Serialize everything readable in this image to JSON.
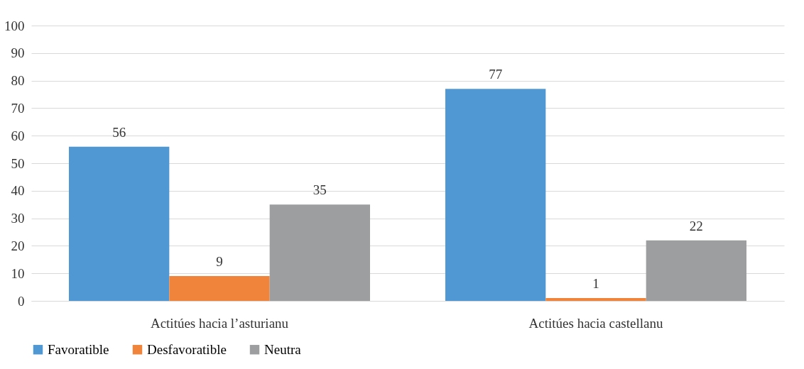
{
  "chart_data": {
    "type": "bar",
    "categories": [
      "Actitúes hacia l’asturianu",
      "Actitúes hacia castellanu"
    ],
    "series": [
      {
        "name": "Favoratible",
        "color": "#4f98d4",
        "values": [
          56,
          77
        ]
      },
      {
        "name": "Desfavoratible",
        "color": "#f0843a",
        "values": [
          9,
          1
        ]
      },
      {
        "name": "Neutra",
        "color": "#9c9e9f",
        "values": [
          35,
          22
        ]
      }
    ],
    "data_labels": true,
    "ylim": [
      0,
      100
    ],
    "yticks": [
      0,
      10,
      20,
      30,
      40,
      50,
      60,
      70,
      80,
      90,
      100
    ],
    "grid": "y",
    "legend": "bottom"
  }
}
